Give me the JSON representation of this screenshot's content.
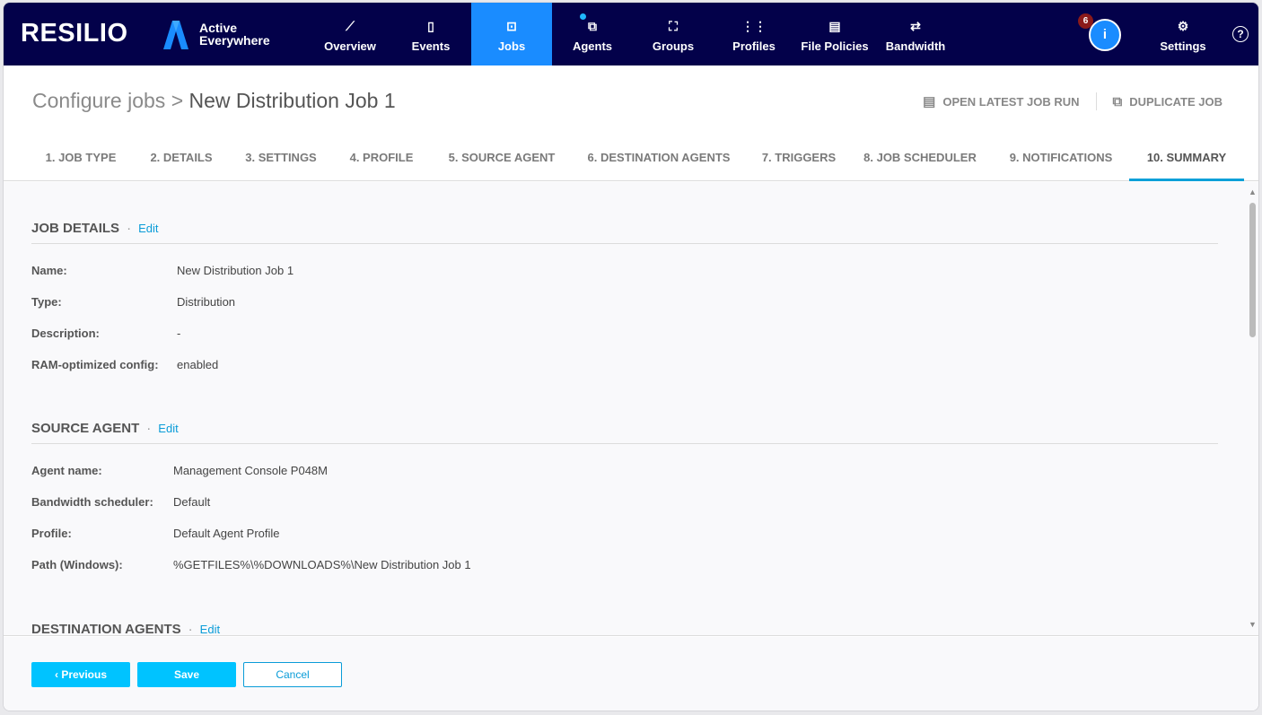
{
  "brand": {
    "logo": "RESILIO",
    "product_line1": "Active",
    "product_line2": "Everywhere"
  },
  "nav": {
    "items": [
      {
        "label": "Overview",
        "icon": "chart-line-icon",
        "glyph": "⟋"
      },
      {
        "label": "Events",
        "icon": "calendar-clock-icon",
        "glyph": "▯"
      },
      {
        "label": "Jobs",
        "icon": "briefcase-gear-icon",
        "glyph": "⊡",
        "active": true
      },
      {
        "label": "Agents",
        "icon": "devices-icon",
        "glyph": "⧉"
      },
      {
        "label": "Groups",
        "icon": "group-nodes-icon",
        "glyph": "⛶"
      },
      {
        "label": "Profiles",
        "icon": "list-icon",
        "glyph": "⋮⋮"
      },
      {
        "label": "File Policies",
        "icon": "file-gear-icon",
        "glyph": "▤"
      },
      {
        "label": "Bandwidth",
        "icon": "swap-arrows-icon",
        "glyph": "⇄"
      }
    ],
    "notifications_count": "6",
    "settings_label": "Settings",
    "help": "?",
    "info": "i"
  },
  "header": {
    "breadcrumb_parent": "Configure jobs",
    "separator": ">",
    "title": "New Distribution Job 1",
    "open_latest_job_run": "OPEN LATEST JOB RUN",
    "duplicate_job": "DUPLICATE JOB"
  },
  "tabs": [
    "1. JOB TYPE",
    "2. DETAILS",
    "3. SETTINGS",
    "4. PROFILE",
    "5. SOURCE AGENT",
    "6. DESTINATION AGENTS",
    "7. TRIGGERS",
    "8. JOB SCHEDULER",
    "9. NOTIFICATIONS",
    "10. SUMMARY"
  ],
  "active_tab": "10. SUMMARY",
  "sections": {
    "job_details": {
      "title": "JOB DETAILS",
      "edit": "Edit",
      "rows": [
        {
          "k": "Name:",
          "v": "New Distribution Job 1"
        },
        {
          "k": "Type:",
          "v": "Distribution"
        },
        {
          "k": "Description:",
          "v": "-"
        },
        {
          "k": "RAM-optimized config:",
          "v": "enabled"
        }
      ]
    },
    "source_agent": {
      "title": "SOURCE AGENT",
      "edit": "Edit",
      "rows": [
        {
          "k": "Agent name:",
          "v": "Management Console P048M"
        },
        {
          "k": "Bandwidth scheduler:",
          "v": "Default"
        },
        {
          "k": "Profile:",
          "v": "Default Agent Profile"
        },
        {
          "k": "Path (Windows):",
          "v": "%GETFILES%\\%DOWNLOADS%\\New Distribution Job 1"
        }
      ]
    },
    "destination_agents": {
      "title": "DESTINATION AGENTS",
      "edit": "Edit"
    }
  },
  "footer": {
    "previous": "‹ Previous",
    "save": "Save",
    "cancel": "Cancel"
  },
  "colors": {
    "nav_bg": "#03014a",
    "nav_active": "#1a8cff",
    "primary_button": "#00c3ff",
    "link": "#0a9cd8"
  }
}
